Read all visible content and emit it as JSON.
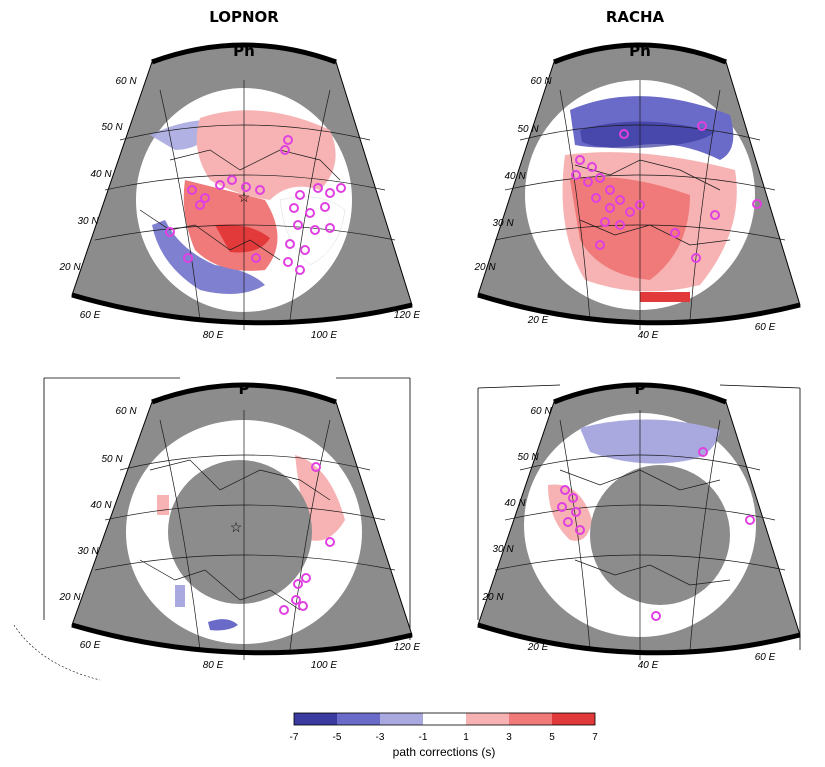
{
  "stations": [
    {
      "name": "LOPNOR",
      "panels": [
        {
          "wave": "Pn",
          "lat_labels": [
            "60 N",
            "50 N",
            "40 N",
            "30 N",
            "20 N"
          ],
          "lon_labels": [
            "60 E",
            "80 E",
            "100 E",
            "120 E"
          ]
        },
        {
          "wave": "P",
          "lat_labels": [
            "60 N",
            "50 N",
            "40 N",
            "30 N",
            "20 N"
          ],
          "lon_labels": [
            "60 E",
            "80 E",
            "100 E",
            "120 E"
          ]
        }
      ]
    },
    {
      "name": "RACHA",
      "panels": [
        {
          "wave": "Pn",
          "lat_labels": [
            "60 N",
            "50 N",
            "40 N",
            "30 N",
            "20 N"
          ],
          "lon_labels": [
            "20 E",
            "40 E",
            "60 E"
          ]
        },
        {
          "wave": "P",
          "lat_labels": [
            "60 N",
            "50 N",
            "40 N",
            "30 N",
            "20 N"
          ],
          "lon_labels": [
            "20 E",
            "40 E",
            "60 E"
          ]
        }
      ]
    }
  ],
  "colorbar": {
    "ticks": [
      "-7",
      "-5",
      "-3",
      "-1",
      "1",
      "3",
      "5",
      "7"
    ],
    "colors": [
      "#3a3aa0",
      "#6a6ac8",
      "#a9a9e0",
      "#ffffff",
      "#f7b3b3",
      "#f07a7a",
      "#e23a3a"
    ],
    "label": "path corrections (s)"
  },
  "palette": {
    "map_gray": "#8c8c8c",
    "frame_black": "#000000",
    "station_marker": "#e040e0",
    "coast": "#1a1a1a"
  }
}
